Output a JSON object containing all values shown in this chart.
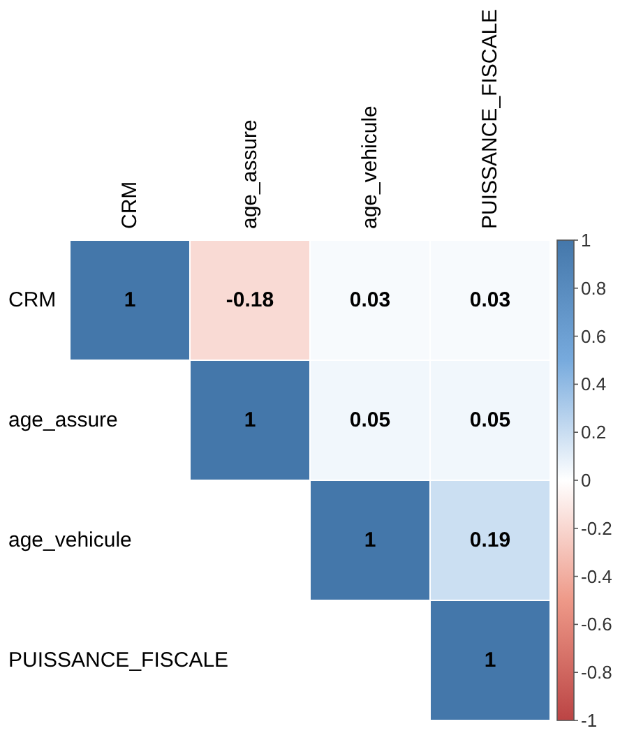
{
  "chart_data": {
    "type": "heatmap",
    "categories": [
      "CRM",
      "age_assure",
      "age_vehicule",
      "PUISSANCE_FISCALE"
    ],
    "y_categories": [
      "CRM",
      "age_assure",
      "age_vehicule",
      "PUISSANCE_FISCALE"
    ],
    "cells": [
      [
        1,
        -0.18,
        0.03,
        0.03
      ],
      [
        null,
        1,
        0.05,
        0.05
      ],
      [
        null,
        null,
        1,
        0.19
      ],
      [
        null,
        null,
        null,
        1
      ]
    ],
    "data_labels": true,
    "clim": [
      -1,
      1
    ],
    "cticks": [
      -1,
      -0.8,
      -0.6,
      -0.4,
      -0.2,
      0,
      0.2,
      0.4,
      0.6,
      0.8,
      1
    ]
  }
}
